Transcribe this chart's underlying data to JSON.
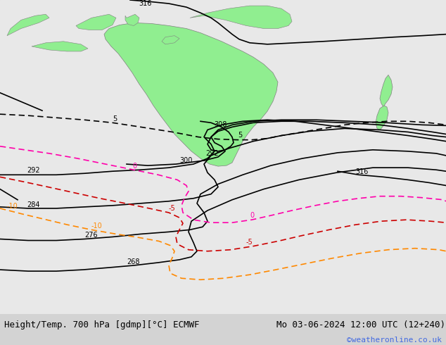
{
  "title_left": "Height/Temp. 700 hPa [gdmp][°C] ECMWF",
  "title_right": "Mo 03-06-2024 12:00 UTC (12+240)",
  "credit": "©weatheronline.co.uk",
  "background_color": "#d3d3d3",
  "land_color": "#90EE90",
  "land_border_color": "#808080",
  "ocean_color": "#e8e8e8",
  "bottom_bar_color": "#ffffff",
  "title_fontsize": 9,
  "credit_color": "#4169E1",
  "credit_fontsize": 8
}
